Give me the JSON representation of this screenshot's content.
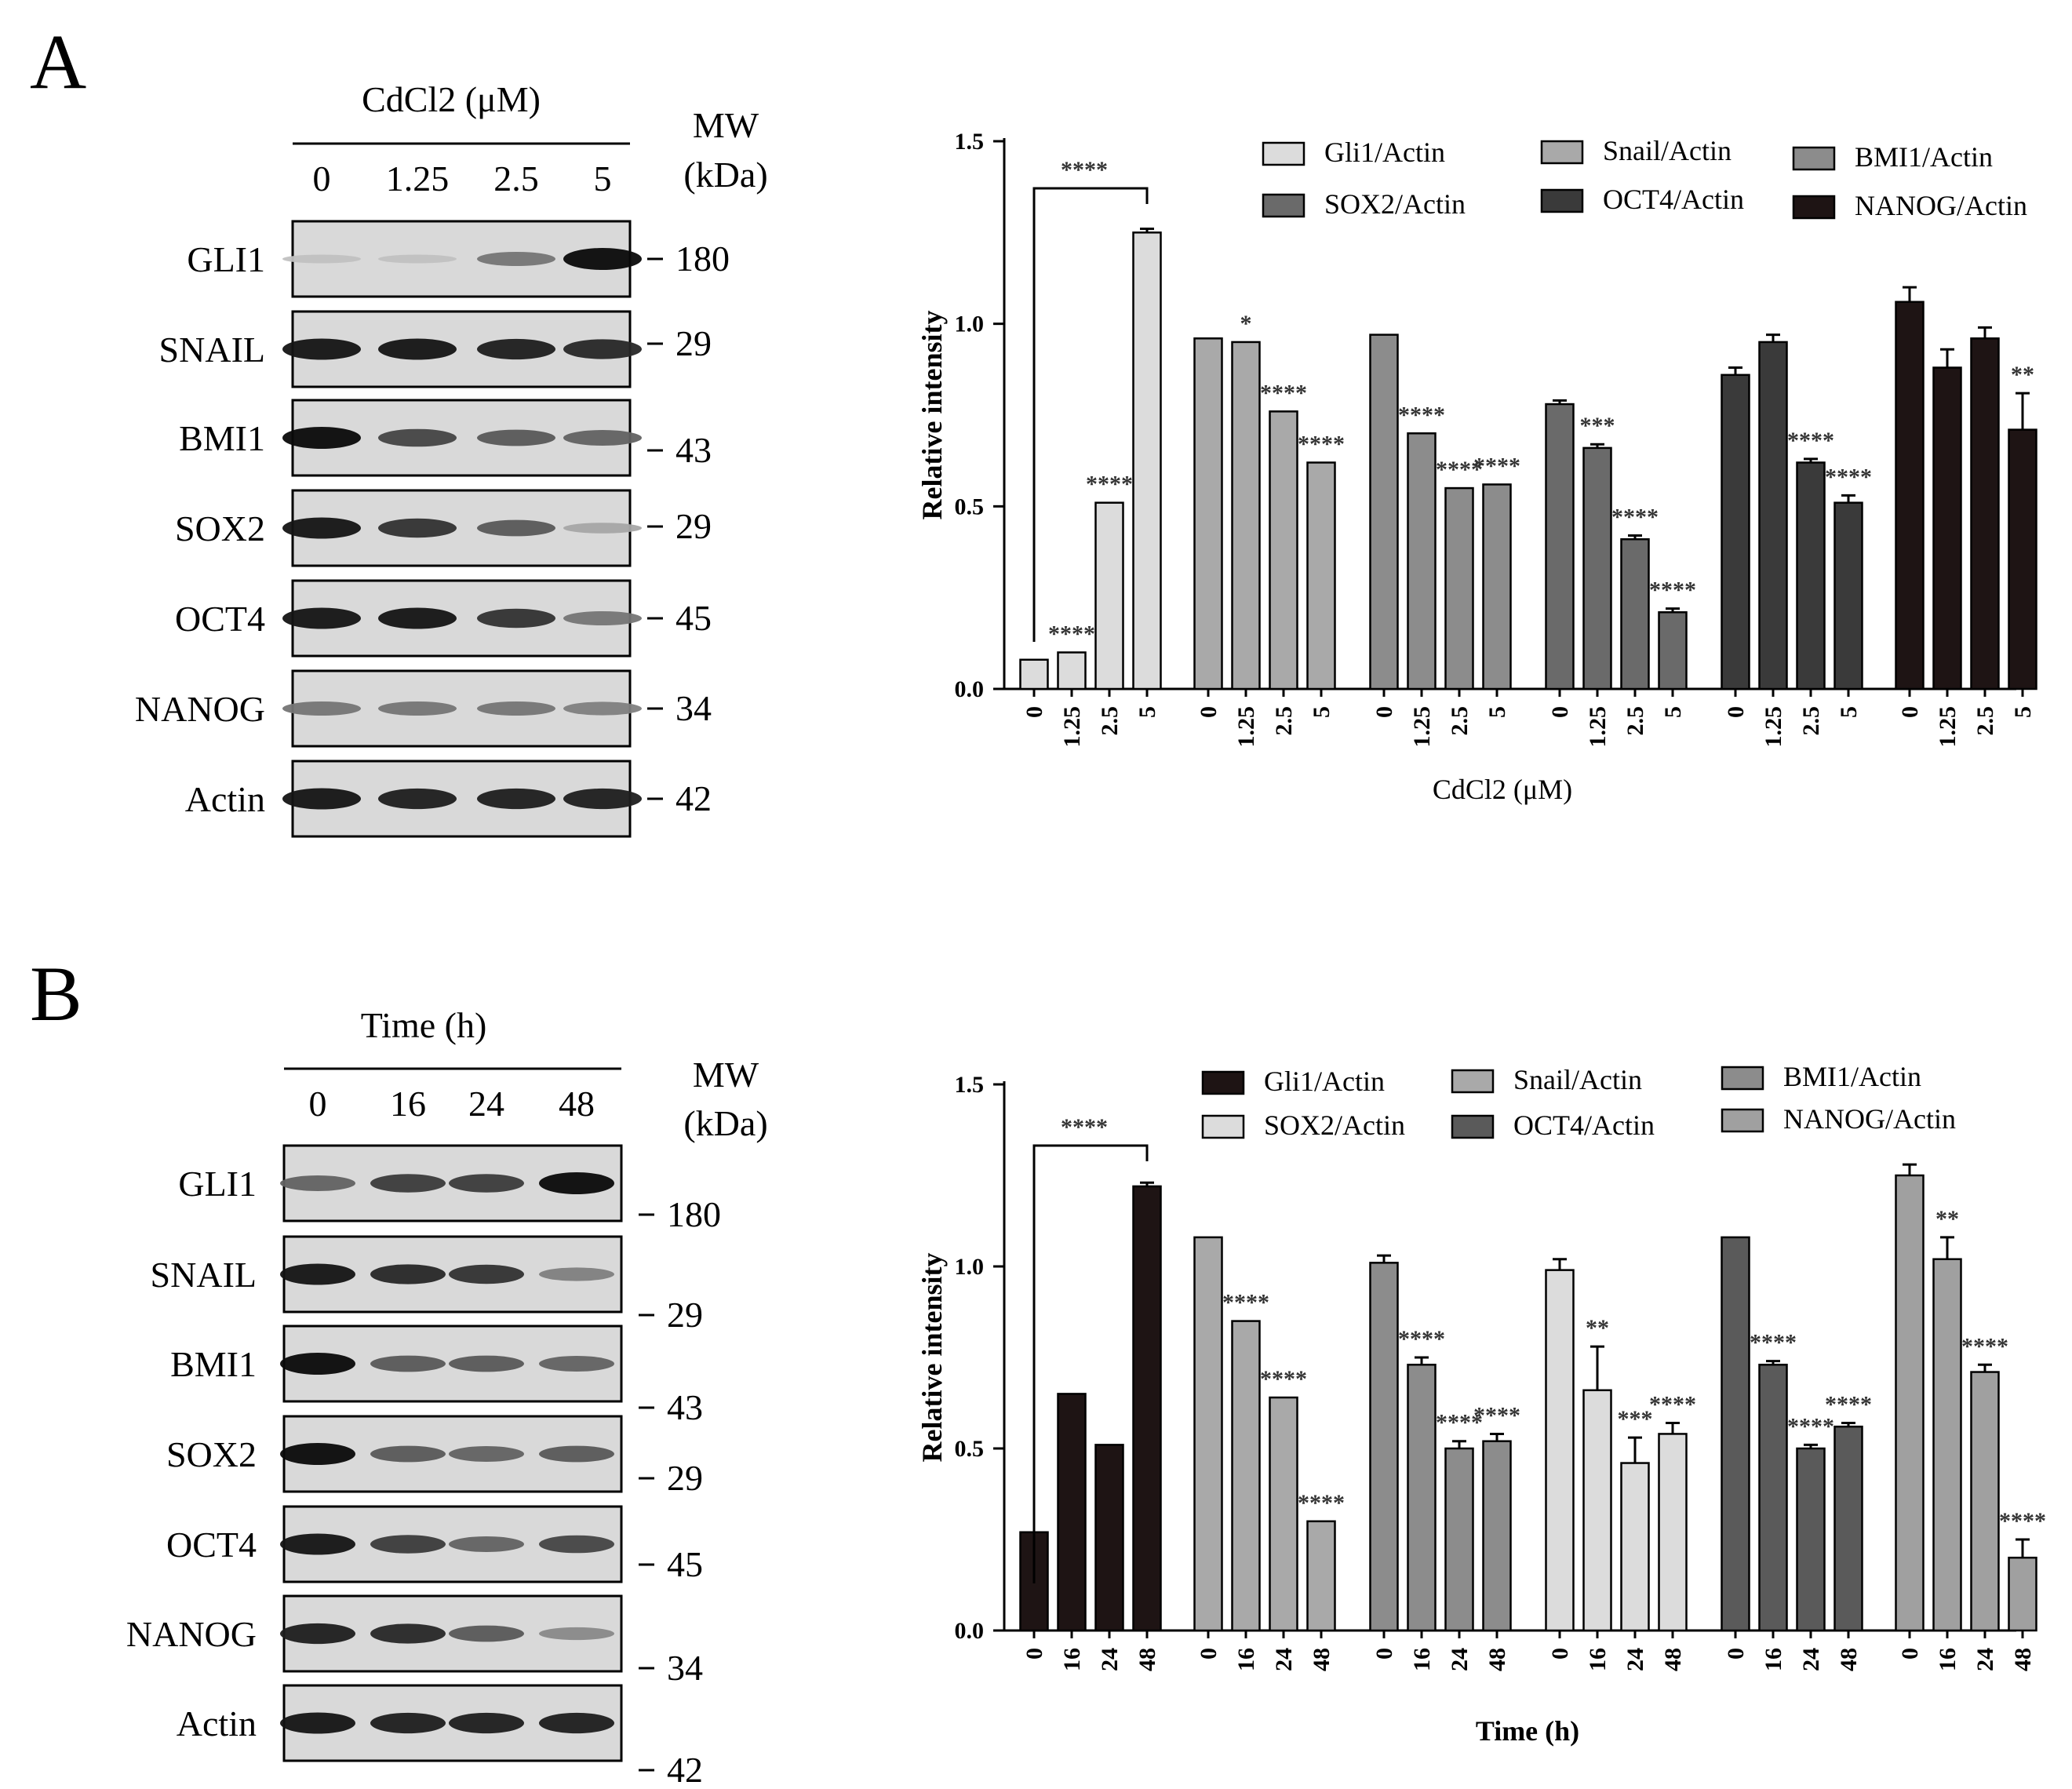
{
  "figure": {
    "panel_A": {
      "letter": "A",
      "blot": {
        "treatment_title": "CdCl2 (μM)",
        "lane_labels": [
          "0",
          "1.25",
          "2.5",
          "5"
        ],
        "mw_title_line1": "MW",
        "mw_title_line2": "(kDa)",
        "bands": [
          {
            "protein": "GLI1",
            "mw": "180",
            "intensities": [
              0.06,
              0.06,
              0.45,
              1.0
            ]
          },
          {
            "protein": "SNAIL",
            "mw": "29",
            "intensities": [
              0.95,
              0.95,
              0.9,
              0.85
            ]
          },
          {
            "protein": "BMI1",
            "mw": "43",
            "intensities": [
              1.0,
              0.7,
              0.6,
              0.55
            ]
          },
          {
            "protein": "SOX2",
            "mw": "29",
            "intensities": [
              0.95,
              0.8,
              0.6,
              0.2
            ]
          },
          {
            "protein": "OCT4",
            "mw": "45",
            "intensities": [
              0.95,
              0.95,
              0.8,
              0.45
            ]
          },
          {
            "protein": "NANOG",
            "mw": "34",
            "intensities": [
              0.45,
              0.45,
              0.45,
              0.4
            ]
          },
          {
            "protein": "Actin",
            "mw": "42",
            "intensities": [
              0.95,
              0.9,
              0.9,
              0.9
            ]
          }
        ]
      }
    },
    "panel_B": {
      "letter": "B",
      "blot": {
        "treatment_title": "Time (h)",
        "lane_labels": [
          "0",
          "16",
          "24",
          "48"
        ],
        "mw_title_line1": "MW",
        "mw_title_line2": "(kDa)",
        "bands": [
          {
            "protein": "GLI1",
            "mw": "180",
            "intensities": [
              0.55,
              0.75,
              0.75,
              1.0
            ]
          },
          {
            "protein": "SNAIL",
            "mw": "29",
            "intensities": [
              0.95,
              0.85,
              0.8,
              0.4
            ]
          },
          {
            "protein": "BMI1",
            "mw": "43",
            "intensities": [
              1.0,
              0.6,
              0.6,
              0.55
            ]
          },
          {
            "protein": "SOX2",
            "mw": "29",
            "intensities": [
              1.0,
              0.6,
              0.55,
              0.6
            ]
          },
          {
            "protein": "OCT4",
            "mw": "45",
            "intensities": [
              0.95,
              0.75,
              0.55,
              0.7
            ]
          },
          {
            "protein": "NANOG",
            "mw": "34",
            "intensities": [
              0.9,
              0.85,
              0.6,
              0.35
            ]
          },
          {
            "protein": "Actin",
            "mw": "42",
            "intensities": [
              0.95,
              0.9,
              0.9,
              0.9
            ]
          }
        ]
      }
    }
  },
  "chart_data": [
    {
      "type": "bar",
      "panel": "A",
      "title": "",
      "xlabel": "CdCl2 (μM)",
      "ylabel": "Relative intensity",
      "ylim": [
        0,
        1.5
      ],
      "yticks": [
        "0.0",
        "0.5",
        "1.0",
        "1.5"
      ],
      "categories": [
        "0",
        "1.25",
        "2.5",
        "5"
      ],
      "bracket_label": "****",
      "series": [
        {
          "name": "Gli1/Actin",
          "color": "#dcdcdc",
          "values": [
            0.08,
            0.1,
            0.51,
            1.25
          ],
          "errors": [
            0,
            0,
            0,
            0.01
          ],
          "sig": [
            "",
            "****",
            "****",
            ""
          ]
        },
        {
          "name": "Snail/Actin",
          "color": "#a9a9a9",
          "values": [
            0.96,
            0.95,
            0.76,
            0.62
          ],
          "errors": [
            0,
            0,
            0,
            0
          ],
          "sig": [
            "",
            "*",
            "****",
            "****"
          ]
        },
        {
          "name": "BMI1/Actin",
          "color": "#8c8c8c",
          "values": [
            0.97,
            0.7,
            0.55,
            0.56
          ],
          "errors": [
            0,
            0,
            0,
            0
          ],
          "sig": [
            "",
            "****",
            "****",
            "****"
          ]
        },
        {
          "name": "SOX2/Actin",
          "color": "#6a6a6a",
          "values": [
            0.78,
            0.66,
            0.41,
            0.21
          ],
          "errors": [
            0.01,
            0.01,
            0.01,
            0.01
          ],
          "sig": [
            "",
            "***",
            "****",
            "****"
          ]
        },
        {
          "name": "OCT4/Actin",
          "color": "#3a3a3a",
          "values": [
            0.86,
            0.95,
            0.62,
            0.51
          ],
          "errors": [
            0.02,
            0.02,
            0.01,
            0.02
          ],
          "sig": [
            "",
            "",
            "****",
            "****"
          ]
        },
        {
          "name": "NANOG/Actin",
          "color": "#1e1414",
          "values": [
            1.06,
            0.88,
            0.96,
            0.71
          ],
          "errors": [
            0.04,
            0.05,
            0.03,
            0.1
          ],
          "sig": [
            "",
            "",
            "",
            "**"
          ]
        }
      ]
    },
    {
      "type": "bar",
      "panel": "B",
      "title": "",
      "xlabel": "Time (h)",
      "ylabel": "Relative intensity",
      "ylim": [
        0,
        1.5
      ],
      "yticks": [
        "0.0",
        "0.5",
        "1.0",
        "1.5"
      ],
      "categories": [
        "0",
        "16",
        "24",
        "48"
      ],
      "bracket_label": "****",
      "series": [
        {
          "name": "Gli1/Actin",
          "color": "#1e1414",
          "values": [
            0.27,
            0.65,
            0.51,
            1.22
          ],
          "errors": [
            0,
            0,
            0,
            0.01
          ],
          "sig": [
            "",
            "",
            "",
            ""
          ]
        },
        {
          "name": "Snail/Actin",
          "color": "#a9a9a9",
          "values": [
            1.08,
            0.85,
            0.64,
            0.3
          ],
          "errors": [
            0,
            0,
            0,
            0
          ],
          "sig": [
            "",
            "****",
            "****",
            "****"
          ]
        },
        {
          "name": "BMI1/Actin",
          "color": "#8c8c8c",
          "values": [
            1.01,
            0.73,
            0.5,
            0.52
          ],
          "errors": [
            0.02,
            0.02,
            0.02,
            0.02
          ],
          "sig": [
            "",
            "****",
            "****",
            "****"
          ]
        },
        {
          "name": "SOX2/Actin",
          "color": "#dcdcdc",
          "values": [
            0.99,
            0.66,
            0.46,
            0.54
          ],
          "errors": [
            0.03,
            0.12,
            0.07,
            0.03
          ],
          "sig": [
            "",
            "**",
            "***",
            "****"
          ]
        },
        {
          "name": "OCT4/Actin",
          "color": "#5a5a5a",
          "values": [
            1.08,
            0.73,
            0.5,
            0.56
          ],
          "errors": [
            0,
            0.01,
            0.01,
            0.01
          ],
          "sig": [
            "",
            "****",
            "****",
            "****"
          ]
        },
        {
          "name": "NANOG/Actin",
          "color": "#a0a0a0",
          "values": [
            1.25,
            1.02,
            0.71,
            0.2
          ],
          "errors": [
            0.03,
            0.06,
            0.02,
            0.05
          ],
          "sig": [
            "",
            "**",
            "****",
            "****"
          ]
        }
      ]
    }
  ]
}
